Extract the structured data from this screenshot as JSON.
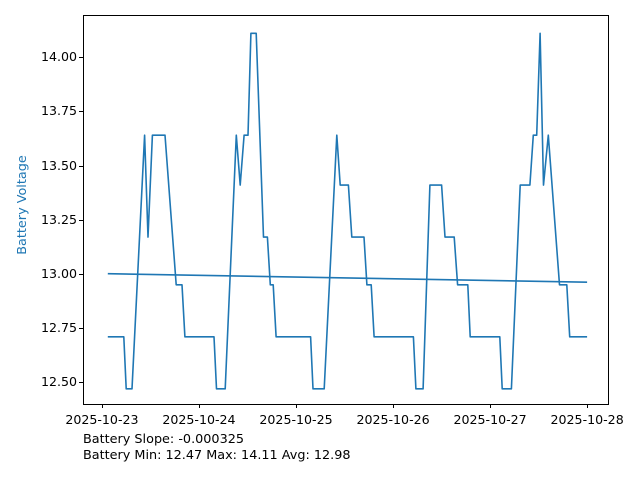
{
  "chart_data": {
    "type": "line",
    "title": "",
    "xlabel": "",
    "ylabel": "Battery Voltage",
    "ylabel_color": "#1f77b4",
    "line_color": "#1f77b4",
    "grid": false,
    "legend": "none",
    "xlim_days": [
      -0.185,
      5.215
    ],
    "ylim": [
      12.4,
      14.19
    ],
    "x_ticks_days": [
      0,
      1,
      2,
      3,
      4,
      5
    ],
    "x_tick_labels": [
      "2025-10-23",
      "2025-10-24",
      "2025-10-25",
      "2025-10-26",
      "2025-10-27",
      "2025-10-28"
    ],
    "y_ticks": [
      12.5,
      12.75,
      13.0,
      13.25,
      13.5,
      13.75,
      14.0
    ],
    "y_tick_labels": [
      "12.50",
      "12.75",
      "13.00",
      "13.25",
      "13.50",
      "13.75",
      "14.00"
    ],
    "x_unit": "days since 2025-10-23 00:00",
    "series": [
      {
        "name": "battery-voltage",
        "points": [
          [
            0.06,
            12.71
          ],
          [
            0.225,
            12.71
          ],
          [
            0.25,
            12.47
          ],
          [
            0.31,
            12.47
          ],
          [
            0.44,
            13.64
          ],
          [
            0.475,
            13.17
          ],
          [
            0.52,
            13.64
          ],
          [
            0.65,
            13.64
          ],
          [
            0.765,
            12.95
          ],
          [
            0.825,
            12.95
          ],
          [
            0.855,
            12.71
          ],
          [
            1.155,
            12.71
          ],
          [
            1.18,
            12.47
          ],
          [
            1.27,
            12.47
          ],
          [
            1.385,
            13.64
          ],
          [
            1.425,
            13.41
          ],
          [
            1.465,
            13.64
          ],
          [
            1.505,
            13.64
          ],
          [
            1.535,
            14.11
          ],
          [
            1.59,
            14.11
          ],
          [
            1.665,
            13.17
          ],
          [
            1.705,
            13.17
          ],
          [
            1.735,
            12.95
          ],
          [
            1.765,
            12.95
          ],
          [
            1.795,
            12.71
          ],
          [
            2.15,
            12.71
          ],
          [
            2.175,
            12.47
          ],
          [
            2.29,
            12.47
          ],
          [
            2.42,
            13.64
          ],
          [
            2.455,
            13.41
          ],
          [
            2.54,
            13.41
          ],
          [
            2.575,
            13.17
          ],
          [
            2.7,
            13.17
          ],
          [
            2.73,
            12.95
          ],
          [
            2.775,
            12.95
          ],
          [
            2.805,
            12.71
          ],
          [
            3.21,
            12.71
          ],
          [
            3.235,
            12.47
          ],
          [
            3.31,
            12.47
          ],
          [
            3.38,
            13.41
          ],
          [
            3.5,
            13.41
          ],
          [
            3.535,
            13.17
          ],
          [
            3.63,
            13.17
          ],
          [
            3.665,
            12.95
          ],
          [
            3.77,
            12.95
          ],
          [
            3.795,
            12.71
          ],
          [
            4.1,
            12.71
          ],
          [
            4.125,
            12.47
          ],
          [
            4.22,
            12.47
          ],
          [
            4.31,
            13.41
          ],
          [
            4.41,
            13.41
          ],
          [
            4.445,
            13.64
          ],
          [
            4.48,
            13.64
          ],
          [
            4.515,
            14.11
          ],
          [
            4.55,
            13.41
          ],
          [
            4.6,
            13.64
          ],
          [
            4.715,
            12.95
          ],
          [
            4.79,
            12.95
          ],
          [
            4.82,
            12.71
          ],
          [
            5.0,
            12.71
          ]
        ]
      },
      {
        "name": "trend",
        "points": [
          [
            0.06,
            13.001
          ],
          [
            5.0,
            12.962
          ]
        ]
      }
    ],
    "annotations": [
      "Battery Slope: -0.000325",
      "Battery Min: 12.47 Max: 14.11 Avg: 12.98"
    ],
    "stats": {
      "slope": -0.000325,
      "min": 12.47,
      "max": 14.11,
      "avg": 12.98
    }
  }
}
